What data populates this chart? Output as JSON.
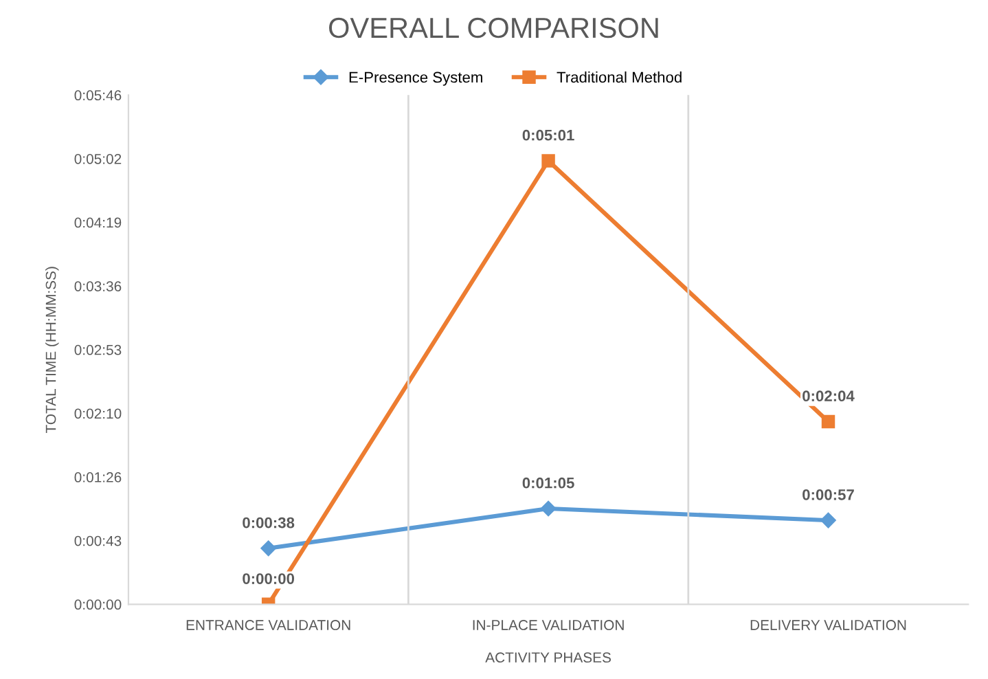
{
  "chart_data": {
    "type": "line",
    "title": "OVERALL COMPARISON",
    "xlabel": "ACTIVITY PHASES",
    "ylabel": "TOTAL TIME (HH:MM:SS)",
    "categories": [
      "ENTRANCE VALIDATION",
      "IN-PLACE VALIDATION",
      "DELIVERY VALIDATION"
    ],
    "series": [
      {
        "name": "E-Presence System",
        "color": "#5b9bd5",
        "marker": "diamond",
        "values": [
          38,
          65,
          57
        ],
        "value_labels": [
          "0:00:38",
          "0:01:05",
          "0:00:57"
        ]
      },
      {
        "name": "Traditional Method",
        "color": "#ed7d31",
        "marker": "square",
        "values": [
          0,
          301,
          124
        ],
        "value_labels": [
          "0:00:00",
          "0:05:01",
          "0:02:04"
        ]
      }
    ],
    "ylim": [
      0,
      345.6
    ],
    "yticks": [
      {
        "value": 0,
        "label": "0:00:00"
      },
      {
        "value": 43.2,
        "label": "0:00:43"
      },
      {
        "value": 86.4,
        "label": "0:01:26"
      },
      {
        "value": 129.6,
        "label": "0:02:10"
      },
      {
        "value": 172.8,
        "label": "0:02:53"
      },
      {
        "value": 216,
        "label": "0:03:36"
      },
      {
        "value": 259.2,
        "label": "0:04:19"
      },
      {
        "value": 302.4,
        "label": "0:05:02"
      },
      {
        "value": 345.6,
        "label": "0:05:46"
      }
    ],
    "grid": "x",
    "legend": "top",
    "line_style": "solid"
  }
}
